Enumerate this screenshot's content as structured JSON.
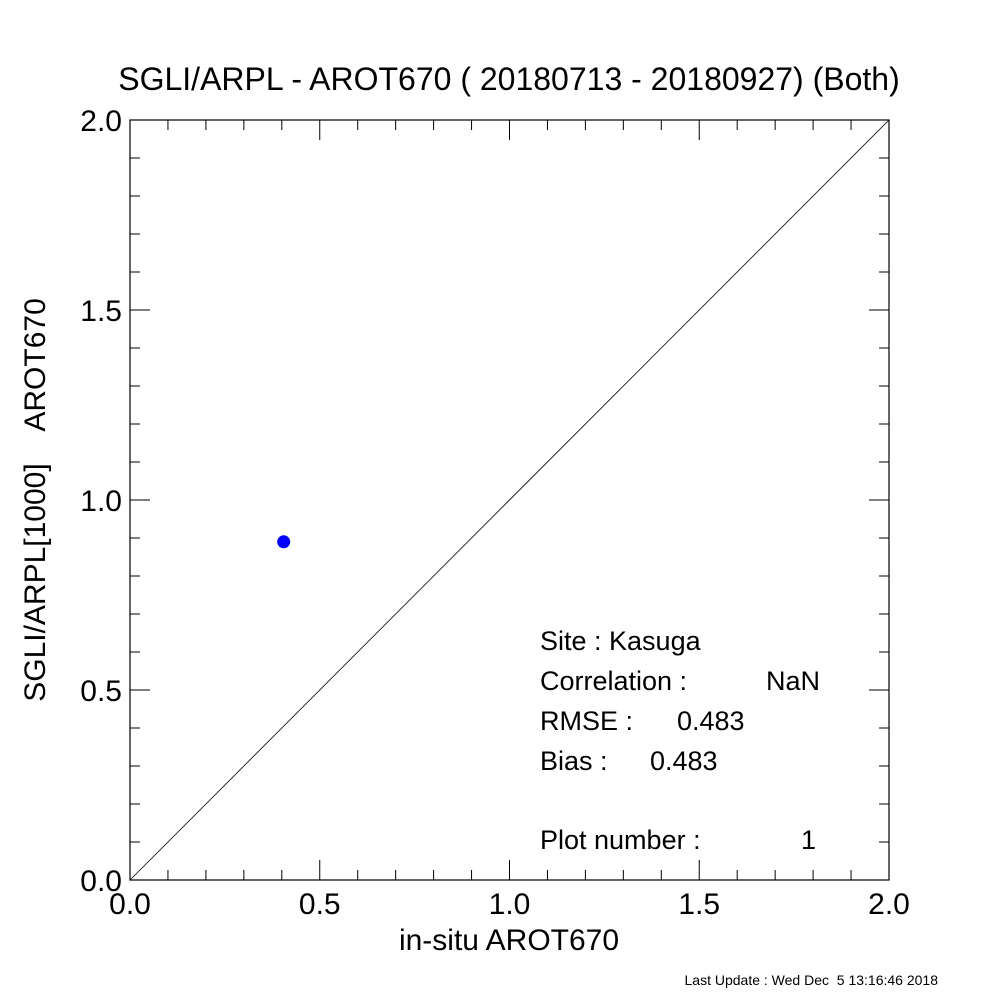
{
  "chart_data": {
    "type": "scatter",
    "title": "SGLI/ARPL - AROT670 ( 20180713 - 20180927) (Both)",
    "xlabel": "in-situ AROT670",
    "ylabel": "SGLI/ARPL[1000]    AROT670",
    "xlim": [
      0.0,
      2.0
    ],
    "ylim": [
      0.0,
      2.0
    ],
    "x_tick_labels": [
      "0.0",
      "0.5",
      "1.0",
      "1.5",
      "2.0"
    ],
    "y_tick_labels": [
      "0.0",
      "0.5",
      "1.0",
      "1.5",
      "2.0"
    ],
    "grid": false,
    "reference_line": "1:1",
    "series": [
      {
        "color": "#0000ff",
        "points": [
          {
            "x": 0.405,
            "y": 0.89
          }
        ]
      }
    ],
    "annotations": {
      "site_label": "Site : Kasuga",
      "correlation_label": "Correlation :",
      "correlation_value": "NaN",
      "rmse_label": "RMSE :",
      "rmse_value": "0.483",
      "bias_label": "Bias :",
      "bias_value": "0.483",
      "plot_number_label": "Plot number :",
      "plot_number_value": "1"
    }
  },
  "footer": {
    "last_update": "Last Update : Wed Dec  5 13:16:46 2018"
  }
}
